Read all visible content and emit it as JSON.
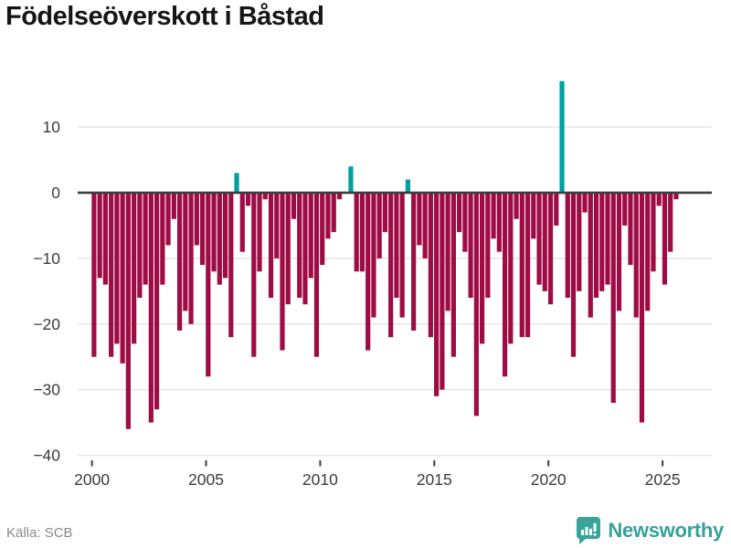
{
  "header": {
    "title": "Födelseöverskott i Båstad"
  },
  "footer": {
    "source_label": "Källa: SCB",
    "brand_name": "Newsworthy"
  },
  "colors": {
    "negative_bar": "#9f0c45",
    "positive_bar": "#00a0a0",
    "zero_line": "#3d3d3d",
    "gridline": "#e4e4e4",
    "axis_text": "#3c3c3c",
    "tick_mark": "#3d3d3d",
    "source_text": "#8a8a8a",
    "brand_teal": "#3aa39c"
  },
  "chart_data": {
    "type": "bar",
    "title": "Födelseöverskott i Båstad",
    "frequency": "quarterly",
    "x_start_year": 2000,
    "periods": [
      "2000Q1",
      "2000Q2",
      "2000Q3",
      "2000Q4",
      "2001Q1",
      "2001Q2",
      "2001Q3",
      "2001Q4",
      "2002Q1",
      "2002Q2",
      "2002Q3",
      "2002Q4",
      "2003Q1",
      "2003Q2",
      "2003Q3",
      "2003Q4",
      "2004Q1",
      "2004Q2",
      "2004Q3",
      "2004Q4",
      "2005Q1",
      "2005Q2",
      "2005Q3",
      "2005Q4",
      "2006Q1",
      "2006Q2",
      "2006Q3",
      "2006Q4",
      "2007Q1",
      "2007Q2",
      "2007Q3",
      "2007Q4",
      "2008Q1",
      "2008Q2",
      "2008Q3",
      "2008Q4",
      "2009Q1",
      "2009Q2",
      "2009Q3",
      "2009Q4",
      "2010Q1",
      "2010Q2",
      "2010Q3",
      "2010Q4",
      "2011Q1",
      "2011Q2",
      "2011Q3",
      "2011Q4",
      "2012Q1",
      "2012Q2",
      "2012Q3",
      "2012Q4",
      "2013Q1",
      "2013Q2",
      "2013Q3",
      "2013Q4",
      "2014Q1",
      "2014Q2",
      "2014Q3",
      "2014Q4",
      "2015Q1",
      "2015Q2",
      "2015Q3",
      "2015Q4",
      "2016Q1",
      "2016Q2",
      "2016Q3",
      "2016Q4",
      "2017Q1",
      "2017Q2",
      "2017Q3",
      "2017Q4",
      "2018Q1",
      "2018Q2",
      "2018Q3",
      "2018Q4",
      "2019Q1",
      "2019Q2",
      "2019Q3",
      "2019Q4",
      "2020Q1",
      "2020Q2",
      "2020Q3",
      "2020Q4",
      "2021Q1",
      "2021Q2",
      "2021Q3",
      "2021Q4",
      "2022Q1",
      "2022Q2",
      "2022Q3",
      "2022Q4",
      "2023Q1",
      "2023Q2",
      "2023Q3",
      "2023Q4",
      "2024Q1",
      "2024Q2",
      "2024Q3",
      "2024Q4",
      "2025Q1",
      "2025Q2",
      "2025Q3"
    ],
    "values": [
      -25,
      -13,
      -14,
      -25,
      -23,
      -26,
      -36,
      -23,
      -16,
      -14,
      -35,
      -33,
      -14,
      -8,
      -4,
      -21,
      -18,
      -20,
      -8,
      -11,
      -28,
      -12,
      -14,
      -13,
      -22,
      3,
      -9,
      -2,
      -25,
      -12,
      -1,
      -16,
      -10,
      -24,
      -17,
      -4,
      -16,
      -17,
      -13,
      -25,
      -11,
      -7,
      -6,
      -1,
      0,
      4,
      -12,
      -12,
      -24,
      -19,
      -10,
      -6,
      -22,
      -16,
      -19,
      2,
      -21,
      -8,
      -10,
      -22,
      -31,
      -30,
      -18,
      -25,
      -6,
      -9,
      -16,
      -34,
      -23,
      -16,
      -7,
      -9,
      -28,
      -23,
      -4,
      -22,
      -22,
      -7,
      -14,
      -15,
      -17,
      -5,
      17,
      -16,
      -25,
      -15,
      -3,
      -19,
      -16,
      -15,
      -14,
      -32,
      -18,
      -5,
      -11,
      -19,
      -35,
      -18,
      -12,
      -2,
      -14,
      -9,
      -1
    ],
    "y_ticks": [
      10,
      0,
      -10,
      -20,
      -30,
      -40
    ],
    "x_ticks": [
      2000,
      2005,
      2010,
      2015,
      2020,
      2025
    ],
    "ylim": [
      -40,
      18
    ],
    "grid": true,
    "legend": false,
    "xlabel": "",
    "ylabel": ""
  }
}
